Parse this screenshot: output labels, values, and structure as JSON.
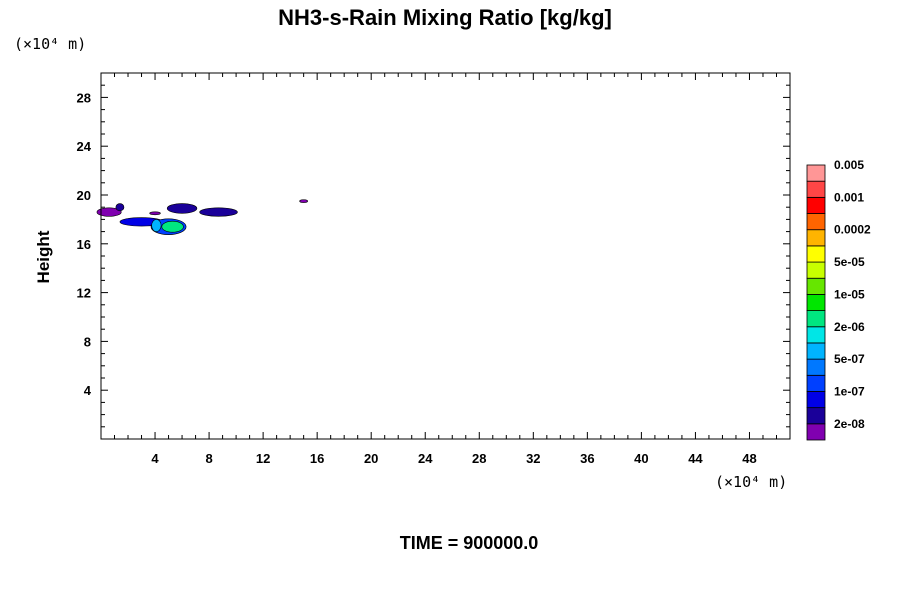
{
  "chart_data": {
    "type": "heatmap",
    "title": "NH3-s-Rain Mixing Ratio [kg/kg]",
    "ylabel": "Height",
    "y_unit_label": "(×10⁴ m)",
    "x_unit_label": "(×10⁴ m)",
    "xlim": [
      0,
      51
    ],
    "ylim": [
      0,
      30
    ],
    "x_ticks": [
      4,
      8,
      12,
      16,
      20,
      24,
      28,
      32,
      36,
      40,
      44,
      48
    ],
    "y_ticks": [
      4,
      8,
      12,
      16,
      20,
      24,
      28
    ],
    "colorbar": {
      "colors": [
        "#8000b0",
        "#1a0099",
        "#0000e6",
        "#0040ff",
        "#0078ff",
        "#00b4ff",
        "#00e6e6",
        "#00e680",
        "#00e600",
        "#66e600",
        "#c8ff00",
        "#ffff00",
        "#ffb400",
        "#ff6400",
        "#ff0000",
        "#ff4646",
        "#ff9696"
      ],
      "labels": [
        "2e-08",
        "1e-07",
        "5e-07",
        "2e-06",
        "1e-05",
        "5e-05",
        "0.0002",
        "0.001",
        "0.005"
      ]
    },
    "regions": [
      {
        "x": 0.6,
        "y": 18.6,
        "rx": 0.9,
        "ry": 0.35,
        "level": 0
      },
      {
        "x": 1.4,
        "y": 19.0,
        "rx": 0.3,
        "ry": 0.3,
        "level": 1
      },
      {
        "x": 3.0,
        "y": 17.8,
        "rx": 1.6,
        "ry": 0.35,
        "level": 2
      },
      {
        "x": 5.0,
        "y": 17.4,
        "rx": 1.3,
        "ry": 0.65,
        "level": 3
      },
      {
        "x": 5.3,
        "y": 17.4,
        "rx": 0.8,
        "ry": 0.45,
        "level": 7
      },
      {
        "x": 4.1,
        "y": 17.5,
        "rx": 0.35,
        "ry": 0.5,
        "level": 5
      },
      {
        "x": 6.0,
        "y": 18.9,
        "rx": 1.1,
        "ry": 0.4,
        "level": 1
      },
      {
        "x": 4.0,
        "y": 18.5,
        "rx": 0.4,
        "ry": 0.12,
        "level": 0
      },
      {
        "x": 8.7,
        "y": 18.6,
        "rx": 1.4,
        "ry": 0.35,
        "level": 1
      },
      {
        "x": 15.0,
        "y": 19.5,
        "rx": 0.3,
        "ry": 0.12,
        "level": 0
      }
    ]
  },
  "footer": {
    "time_label": "TIME = 900000.0"
  }
}
